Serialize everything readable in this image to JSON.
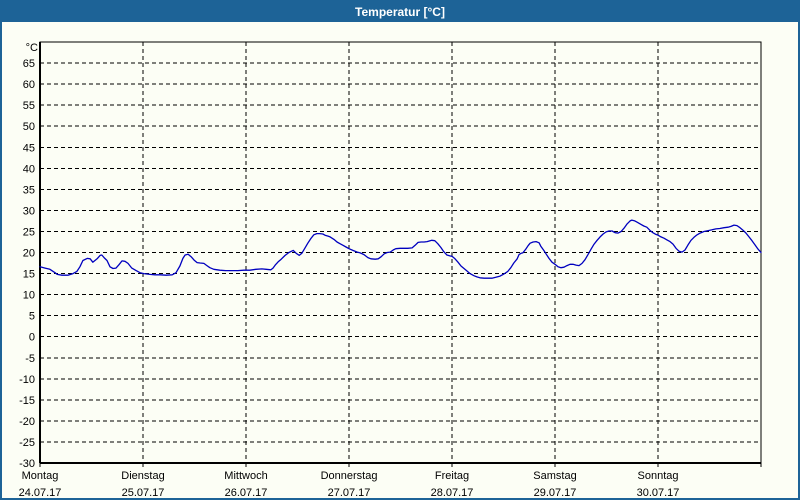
{
  "window": {
    "title": "Temperatur [°C]",
    "titlebar_color": "#1d6397",
    "background_color": "#fcfef5"
  },
  "chart_data": {
    "type": "line",
    "title": "Temperatur [°C]",
    "y_unit_label": "°C",
    "ylabel": "Temperatur",
    "ylim": [
      -30,
      70
    ],
    "y_ticks": [
      65,
      60,
      55,
      50,
      45,
      40,
      35,
      30,
      25,
      20,
      15,
      10,
      5,
      0,
      -5,
      -10,
      -15,
      -20,
      -25,
      -30
    ],
    "grid": "dashed",
    "legend": "none",
    "line_color": "#0000bf",
    "x_axis": {
      "hours_total": 168,
      "days": [
        {
          "name": "Montag",
          "date": "24.07.17"
        },
        {
          "name": "Dienstag",
          "date": "25.07.17"
        },
        {
          "name": "Mittwoch",
          "date": "26.07.17"
        },
        {
          "name": "Donnerstag",
          "date": "27.07.17"
        },
        {
          "name": "Freitag",
          "date": "28.07.17"
        },
        {
          "name": "Samstag",
          "date": "29.07.17"
        },
        {
          "name": "Sonntag",
          "date": "30.07.17"
        }
      ]
    },
    "series": [
      {
        "name": "Temperatur",
        "unit": "°C",
        "points": [
          [
            0,
            16.6
          ],
          [
            1.2,
            16.3
          ],
          [
            2.3,
            16.0
          ],
          [
            3.5,
            15.2
          ],
          [
            4,
            14.8
          ],
          [
            5.1,
            14.6
          ],
          [
            6.5,
            14.6
          ],
          [
            7.7,
            15.0
          ],
          [
            8.6,
            15.5
          ],
          [
            9.3,
            16.6
          ],
          [
            10,
            18.1
          ],
          [
            11,
            18.6
          ],
          [
            11.7,
            18.5
          ],
          [
            12.3,
            17.7
          ],
          [
            13.3,
            18.5
          ],
          [
            14,
            19.3
          ],
          [
            14.4,
            19.4
          ],
          [
            15.1,
            18.6
          ],
          [
            15.6,
            18.1
          ],
          [
            16.3,
            16.6
          ],
          [
            17,
            16.2
          ],
          [
            17.7,
            16.3
          ],
          [
            18.4,
            17.1
          ],
          [
            19.1,
            18.0
          ],
          [
            19.8,
            17.9
          ],
          [
            20.5,
            17.4
          ],
          [
            21.4,
            16.3
          ],
          [
            22.4,
            15.7
          ],
          [
            23.3,
            15.2
          ],
          [
            24.2,
            15.0
          ],
          [
            25.6,
            14.8
          ],
          [
            26.8,
            14.7
          ],
          [
            28,
            14.7
          ],
          [
            29.4,
            14.6
          ],
          [
            30.8,
            14.7
          ],
          [
            31.7,
            15.2
          ],
          [
            32.6,
            16.8
          ],
          [
            33.3,
            18.6
          ],
          [
            33.8,
            19.4
          ],
          [
            34.5,
            19.6
          ],
          [
            35.2,
            19.0
          ],
          [
            35.9,
            18.2
          ],
          [
            36.6,
            17.6
          ],
          [
            37.3,
            17.5
          ],
          [
            38.2,
            17.4
          ],
          [
            38.9,
            16.9
          ],
          [
            39.6,
            16.4
          ],
          [
            40.5,
            16.0
          ],
          [
            41.9,
            15.8
          ],
          [
            43.3,
            15.7
          ],
          [
            44.7,
            15.7
          ],
          [
            46.1,
            15.7
          ],
          [
            47.5,
            15.8
          ],
          [
            48.9,
            15.8
          ],
          [
            50.3,
            16.0
          ],
          [
            51.7,
            16.1
          ],
          [
            52.7,
            16.0
          ],
          [
            53.8,
            15.9
          ],
          [
            54.3,
            16.3
          ],
          [
            54.8,
            17.0
          ],
          [
            55.5,
            17.8
          ],
          [
            56.2,
            18.4
          ],
          [
            57.1,
            19.3
          ],
          [
            58,
            20.0
          ],
          [
            59,
            20.5
          ],
          [
            59.7,
            19.8
          ],
          [
            60.4,
            19.3
          ],
          [
            61,
            19.8
          ],
          [
            61.7,
            21.0
          ],
          [
            62.4,
            22.2
          ],
          [
            63.1,
            23.3
          ],
          [
            63.8,
            24.2
          ],
          [
            64.5,
            24.5
          ],
          [
            65.2,
            24.5
          ],
          [
            65.9,
            24.4
          ],
          [
            66.4,
            24.1
          ],
          [
            67.1,
            23.9
          ],
          [
            67.6,
            23.7
          ],
          [
            68.5,
            23.1
          ],
          [
            69.2,
            22.5
          ],
          [
            69.9,
            22.1
          ],
          [
            70.6,
            21.7
          ],
          [
            71.3,
            21.3
          ],
          [
            72,
            20.9
          ],
          [
            72.9,
            20.5
          ],
          [
            73.9,
            20.1
          ],
          [
            74.6,
            19.9
          ],
          [
            75.5,
            19.5
          ],
          [
            76.4,
            18.8
          ],
          [
            77.1,
            18.5
          ],
          [
            78.1,
            18.4
          ],
          [
            78.8,
            18.5
          ],
          [
            79.5,
            19.0
          ],
          [
            80.2,
            19.7
          ],
          [
            80.9,
            20.0
          ],
          [
            81.6,
            20.1
          ],
          [
            82.3,
            20.6
          ],
          [
            82.9,
            20.9
          ],
          [
            83.9,
            21.0
          ],
          [
            84.8,
            21.0
          ],
          [
            85.7,
            21.0
          ],
          [
            86.7,
            21.1
          ],
          [
            87.4,
            21.7
          ],
          [
            88.1,
            22.4
          ],
          [
            88.8,
            22.5
          ],
          [
            89.5,
            22.5
          ],
          [
            90.2,
            22.6
          ],
          [
            90.9,
            22.8
          ],
          [
            91.3,
            22.9
          ],
          [
            92,
            22.8
          ],
          [
            92.7,
            22.1
          ],
          [
            93.4,
            21.2
          ],
          [
            94.1,
            20.2
          ],
          [
            94.8,
            19.4
          ],
          [
            95.5,
            19.2
          ],
          [
            96,
            19.1
          ],
          [
            96.7,
            18.5
          ],
          [
            97.4,
            17.7
          ],
          [
            98.1,
            16.8
          ],
          [
            98.8,
            16.2
          ],
          [
            99.5,
            15.6
          ],
          [
            100.2,
            15.0
          ],
          [
            101.1,
            14.5
          ],
          [
            101.8,
            14.2
          ],
          [
            102.5,
            14.0
          ],
          [
            103.5,
            13.9
          ],
          [
            104.4,
            13.9
          ],
          [
            105.3,
            13.9
          ],
          [
            106.2,
            14.1
          ],
          [
            107.2,
            14.4
          ],
          [
            108.1,
            14.9
          ],
          [
            109,
            15.5
          ],
          [
            109.7,
            16.4
          ],
          [
            110.4,
            17.5
          ],
          [
            111.2,
            18.5
          ],
          [
            111.6,
            19.5
          ],
          [
            112.1,
            19.8
          ],
          [
            112.5,
            19.9
          ],
          [
            113.2,
            20.8
          ],
          [
            113.7,
            21.6
          ],
          [
            114.2,
            22.2
          ],
          [
            114.9,
            22.5
          ],
          [
            115.6,
            22.6
          ],
          [
            116.3,
            22.3
          ],
          [
            116.7,
            21.5
          ],
          [
            117.4,
            20.5
          ],
          [
            117.9,
            19.7
          ],
          [
            118.6,
            18.6
          ],
          [
            119.3,
            17.7
          ],
          [
            120,
            17.2
          ],
          [
            120.7,
            16.6
          ],
          [
            121.4,
            16.4
          ],
          [
            122.1,
            16.5
          ],
          [
            122.8,
            16.9
          ],
          [
            123.5,
            17.2
          ],
          [
            124.2,
            17.2
          ],
          [
            124.9,
            17.0
          ],
          [
            125.6,
            16.9
          ],
          [
            126.3,
            17.4
          ],
          [
            127,
            18.3
          ],
          [
            127.7,
            19.5
          ],
          [
            128.4,
            20.8
          ],
          [
            129.1,
            22.0
          ],
          [
            129.8,
            22.9
          ],
          [
            130.5,
            23.7
          ],
          [
            131.2,
            24.4
          ],
          [
            131.9,
            24.9
          ],
          [
            132.6,
            25.1
          ],
          [
            133.3,
            25.1
          ],
          [
            134,
            24.7
          ],
          [
            134.7,
            24.6
          ],
          [
            135.4,
            25.0
          ],
          [
            136.1,
            25.8
          ],
          [
            136.8,
            26.8
          ],
          [
            137.5,
            27.5
          ],
          [
            137.9,
            27.7
          ],
          [
            138.6,
            27.5
          ],
          [
            139.3,
            27.1
          ],
          [
            140,
            26.7
          ],
          [
            140.7,
            26.3
          ],
          [
            141.4,
            26.0
          ],
          [
            142.1,
            25.3
          ],
          [
            142.8,
            24.7
          ],
          [
            143.5,
            24.3
          ],
          [
            144,
            24.1
          ],
          [
            144.7,
            23.7
          ],
          [
            145.4,
            23.4
          ],
          [
            146.1,
            23.0
          ],
          [
            146.8,
            22.6
          ],
          [
            147.5,
            22.0
          ],
          [
            148.2,
            21.0
          ],
          [
            148.9,
            20.3
          ],
          [
            149.6,
            20.1
          ],
          [
            150.3,
            20.6
          ],
          [
            151,
            21.8
          ],
          [
            151.7,
            22.9
          ],
          [
            152.4,
            23.6
          ],
          [
            153.1,
            24.2
          ],
          [
            153.8,
            24.6
          ],
          [
            154.7,
            25.0
          ],
          [
            155.7,
            25.2
          ],
          [
            156.6,
            25.4
          ],
          [
            157.5,
            25.6
          ],
          [
            158.4,
            25.7
          ],
          [
            159.4,
            25.9
          ],
          [
            160.3,
            26.0
          ],
          [
            161,
            26.2
          ],
          [
            161.7,
            26.5
          ],
          [
            162.4,
            26.4
          ],
          [
            163.1,
            25.9
          ],
          [
            163.8,
            25.3
          ],
          [
            164.5,
            24.6
          ],
          [
            165.2,
            23.7
          ],
          [
            165.9,
            22.8
          ],
          [
            166.6,
            21.8
          ],
          [
            167.3,
            20.8
          ],
          [
            168,
            20.0
          ]
        ]
      }
    ]
  }
}
